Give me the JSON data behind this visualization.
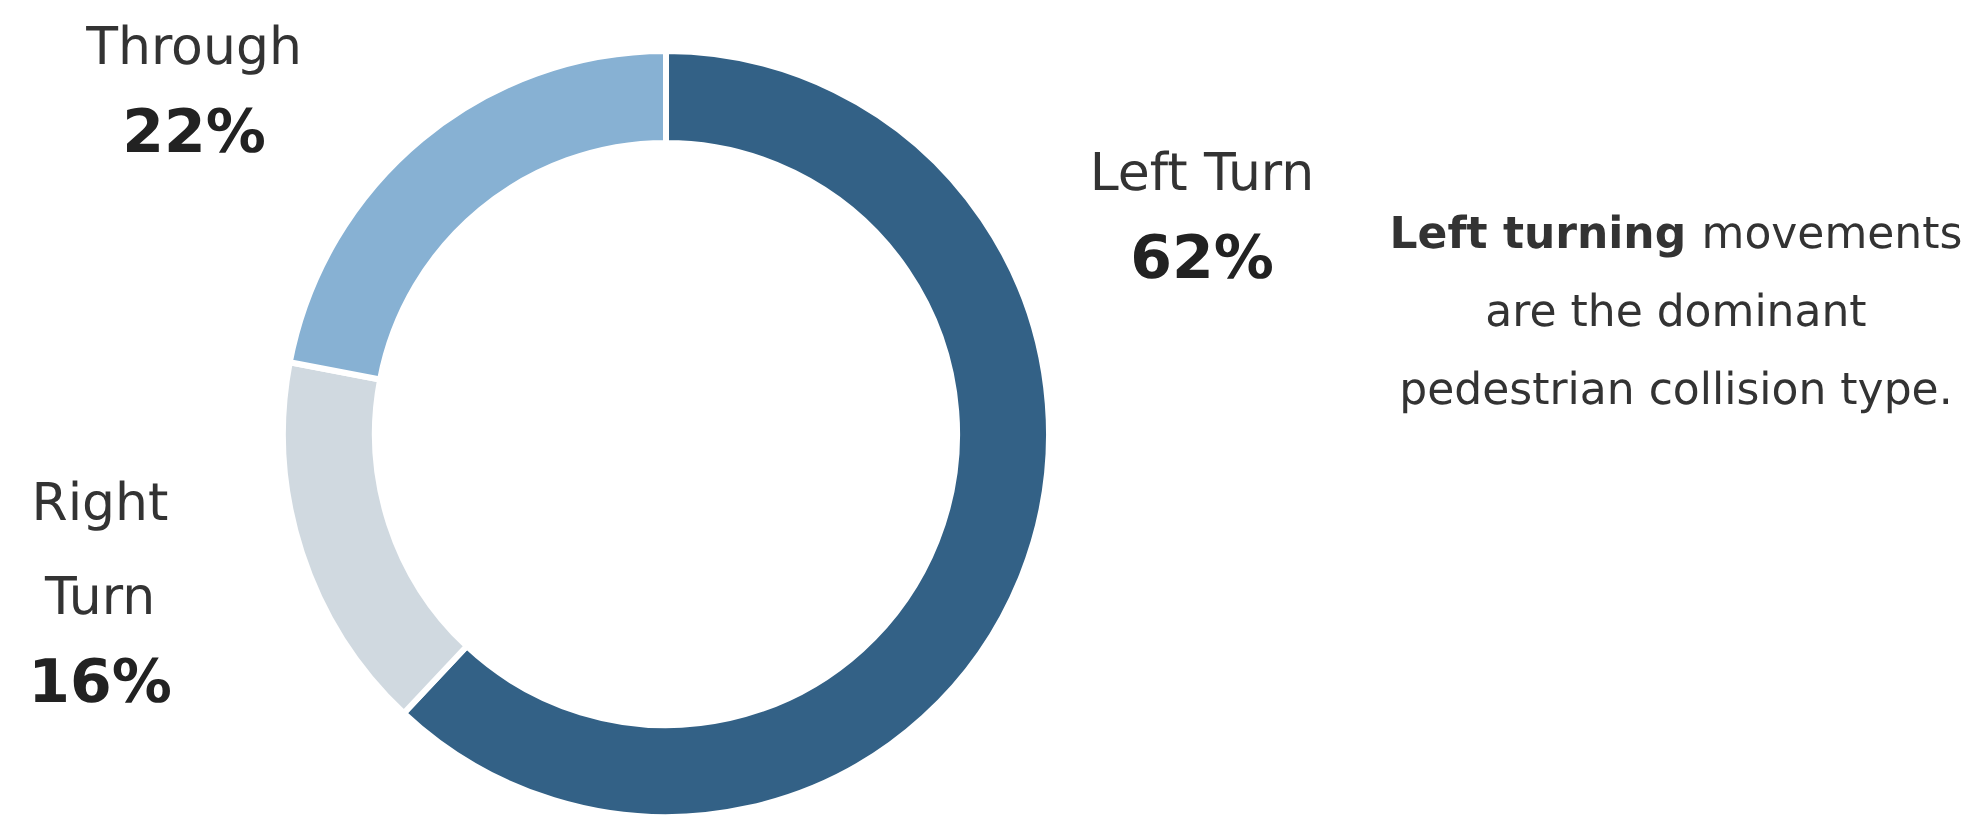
{
  "chart_data": {
    "type": "donut",
    "categories": [
      "Left Turn",
      "Right Turn",
      "Through"
    ],
    "values": [
      62,
      16,
      22
    ],
    "value_labels": [
      "62%",
      "16%",
      "22%"
    ],
    "colors": [
      "#336186",
      "#d0d9e0",
      "#87b1d3"
    ],
    "legend": false,
    "annotations": [
      "Left turning",
      "movements are the dominant pedestrian collision type."
    ]
  }
}
